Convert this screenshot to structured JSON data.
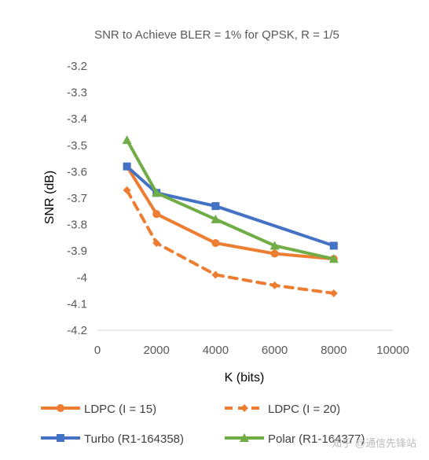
{
  "chart_data": {
    "type": "line",
    "title": "SNR to Achieve BLER = 1% for QPSK, R = 1/5",
    "xlabel": "K (bits)",
    "ylabel": "SNR (dB)",
    "xlim": [
      0,
      10000
    ],
    "ylim": [
      -4.2,
      -3.2
    ],
    "xticks": [
      0,
      2000,
      4000,
      6000,
      8000,
      10000
    ],
    "yticks": [
      -3.2,
      -3.3,
      -3.4,
      -3.5,
      -3.6,
      -3.7,
      -3.8,
      -3.9,
      -4,
      -4.1,
      -4.2
    ],
    "grid": false,
    "legend_position": "bottom",
    "series": [
      {
        "name": "LDPC (I = 15)",
        "color": "#ED7D31",
        "dash": "solid",
        "marker": "circle",
        "x": [
          1000,
          2000,
          4000,
          6000,
          8000
        ],
        "y": [
          -3.58,
          -3.76,
          -3.87,
          -3.91,
          -3.93
        ]
      },
      {
        "name": "LDPC (I = 20)",
        "color": "#ED7D31",
        "dash": "dashed",
        "marker": "diamond",
        "x": [
          1000,
          2000,
          4000,
          6000,
          8000
        ],
        "y": [
          -3.67,
          -3.87,
          -3.99,
          -4.03,
          -4.06
        ]
      },
      {
        "name": "Turbo (R1-164358)",
        "color": "#4472C4",
        "dash": "solid",
        "marker": "square",
        "x": [
          1000,
          2000,
          4000,
          8000
        ],
        "y": [
          -3.58,
          -3.68,
          -3.73,
          -3.88
        ]
      },
      {
        "name": "Polar (R1-164377)",
        "color": "#70AD47",
        "dash": "solid",
        "marker": "triangle",
        "x": [
          1000,
          2000,
          4000,
          6000,
          8000
        ],
        "y": [
          -3.48,
          -3.68,
          -3.78,
          -3.88,
          -3.93
        ]
      }
    ]
  },
  "watermark": "知乎 @通信先锋站"
}
